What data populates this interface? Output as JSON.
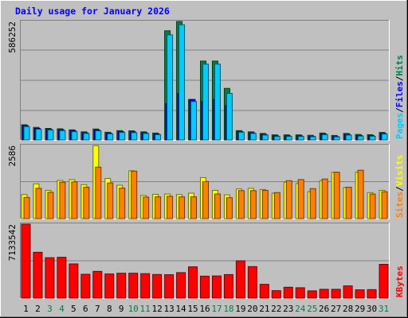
{
  "chart_data": {
    "type": "bar",
    "title": "Daily usage for January 2026",
    "days": [
      {
        "label": "1",
        "weekend": false
      },
      {
        "label": "2",
        "weekend": false
      },
      {
        "label": "3",
        "weekend": true
      },
      {
        "label": "4",
        "weekend": true
      },
      {
        "label": "5",
        "weekend": false
      },
      {
        "label": "6",
        "weekend": false
      },
      {
        "label": "7",
        "weekend": false
      },
      {
        "label": "8",
        "weekend": false
      },
      {
        "label": "9",
        "weekend": false
      },
      {
        "label": "10",
        "weekend": true
      },
      {
        "label": "11",
        "weekend": true
      },
      {
        "label": "12",
        "weekend": false
      },
      {
        "label": "13",
        "weekend": false
      },
      {
        "label": "14",
        "weekend": false
      },
      {
        "label": "15",
        "weekend": false
      },
      {
        "label": "16",
        "weekend": false
      },
      {
        "label": "17",
        "weekend": true
      },
      {
        "label": "18",
        "weekend": true
      },
      {
        "label": "19",
        "weekend": false
      },
      {
        "label": "20",
        "weekend": false
      },
      {
        "label": "21",
        "weekend": false
      },
      {
        "label": "22",
        "weekend": false
      },
      {
        "label": "23",
        "weekend": false
      },
      {
        "label": "24",
        "weekend": true
      },
      {
        "label": "25",
        "weekend": true
      },
      {
        "label": "26",
        "weekend": false
      },
      {
        "label": "27",
        "weekend": false
      },
      {
        "label": "28",
        "weekend": false
      },
      {
        "label": "29",
        "weekend": false
      },
      {
        "label": "30",
        "weekend": false
      },
      {
        "label": "31",
        "weekend": true
      }
    ],
    "panels": [
      {
        "id": "hits",
        "max_label": "586252",
        "ylim": [
          0,
          586252
        ],
        "legend": [
          {
            "text": "Pages",
            "color": "#00ccff"
          },
          {
            "text": "/",
            "color": "#000000"
          },
          {
            "text": "Files",
            "color": "#0000ff"
          },
          {
            "text": "/",
            "color": "#000000"
          },
          {
            "text": "Hits",
            "color": "#008040"
          }
        ],
        "series": [
          {
            "name": "Hits",
            "color": "#008040",
            "values": [
              75000,
              62000,
              57000,
              55000,
              50000,
              40000,
              54000,
              38000,
              46000,
              45000,
              40000,
              34000,
              540000,
              586000,
              200000,
              390000,
              390000,
              255000,
              46000,
              40000,
              32000,
              25000,
              25000,
              25000,
              23000,
              34000,
              22000,
              32000,
              27000,
              26000,
              37000
            ]
          },
          {
            "name": "Files",
            "color": "#0000ff",
            "values": [
              70000,
              57000,
              52000,
              50000,
              45000,
              35000,
              49000,
              33000,
              41000,
              40000,
              35000,
              29000,
              180000,
              230000,
              200000,
              190000,
              200000,
              170000,
              41000,
              35000,
              27000,
              20000,
              20000,
              20000,
              18000,
              29000,
              17000,
              27000,
              22000,
              21000,
              32000
            ]
          },
          {
            "name": "Pages",
            "color": "#00ccff",
            "values": [
              66000,
              53000,
              49000,
              46000,
              41000,
              32000,
              45000,
              30000,
              37000,
              36000,
              32000,
              26000,
              520000,
              570000,
              190000,
              375000,
              375000,
              230000,
              38000,
              32000,
              24000,
              17000,
              17000,
              17000,
              16000,
              26000,
              15000,
              24000,
              19000,
              18000,
              29000
            ]
          }
        ]
      },
      {
        "id": "visits",
        "max_label": "2586",
        "ylim": [
          0,
          2586
        ],
        "legend": [
          {
            "text": "Sites",
            "color": "#ff8000"
          },
          {
            "text": "/",
            "color": "#000000"
          },
          {
            "text": "Visits",
            "color": "#ffff00"
          }
        ],
        "series": [
          {
            "name": "Visits",
            "color": "#ffff00",
            "values": [
              850,
              1230,
              1000,
              1350,
              1380,
              1200,
              2580,
              1420,
              1180,
              1690,
              820,
              860,
              870,
              850,
              900,
              1450,
              1000,
              840,
              1050,
              1070,
              1030,
              900,
              1290,
              1240,
              950,
              1340,
              1640,
              1100,
              1640,
              920,
              1000
            ]
          },
          {
            "name": "Sites",
            "color": "#ff8000",
            "values": [
              750,
              1070,
              930,
              1290,
              1300,
              1110,
              1820,
              1260,
              1080,
              1680,
              760,
              770,
              790,
              770,
              770,
              1310,
              870,
              740,
              990,
              990,
              1000,
              920,
              1340,
              1380,
              1060,
              1400,
              1640,
              1110,
              1710,
              870,
              950
            ]
          }
        ]
      },
      {
        "id": "kbytes",
        "max_label": "7133542",
        "ylim": [
          0,
          7133542
        ],
        "legend": [
          {
            "text": "KBytes",
            "color": "#ff0000"
          }
        ],
        "series": [
          {
            "name": "KBytes",
            "color": "#ff0000",
            "values": [
              7130000,
              4420000,
              3900000,
              3940000,
              3300000,
              2300000,
              2580000,
              2330000,
              2400000,
              2400000,
              2360000,
              2280000,
              2260000,
              2460000,
              3020000,
              2120000,
              2140000,
              2270000,
              3600000,
              3040000,
              1330000,
              720000,
              1050000,
              1000000,
              700000,
              850000,
              850000,
              1180000,
              800000,
              820000,
              3260000
            ]
          }
        ]
      }
    ]
  }
}
